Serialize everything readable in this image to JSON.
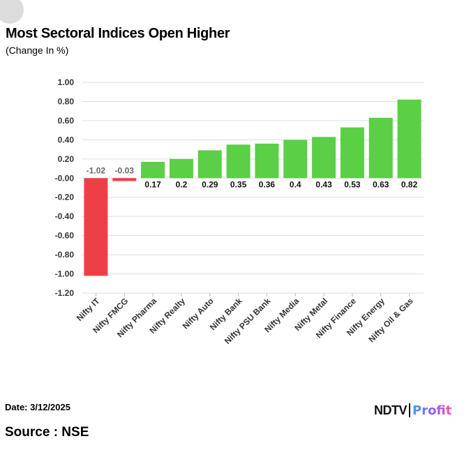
{
  "title": "Most Sectoral Indices Open Higher",
  "subtitle": "(Change In %)",
  "footer": {
    "date": "Date: 3/12/2025",
    "source": "Source : NSE"
  },
  "logo": {
    "brand": "NDTV",
    "product": "Profit"
  },
  "colors": {
    "positive": "#5bcf45",
    "negative": "#ee3f46",
    "grid": "#dddddd",
    "axis_text": "#333333"
  },
  "chart_data": {
    "type": "bar",
    "categories": [
      "Nifty IT",
      "Nifty FMCG",
      "Nifty Pharma",
      "Nifty Realty",
      "Nifty Auto",
      "Nifty Bank",
      "Nifty PSU Bank",
      "Nifty Media",
      "Nifty Metal",
      "Nifty Finance",
      "Nifty Energy",
      "Nifty Oil & Gas"
    ],
    "values": [
      -1.02,
      -0.03,
      0.17,
      0.2,
      0.29,
      0.35,
      0.36,
      0.4,
      0.43,
      0.53,
      0.63,
      0.82
    ],
    "value_labels": [
      "-1.02",
      "-0.03",
      "0.17",
      "0.2",
      "0.29",
      "0.35",
      "0.36",
      "0.4",
      "0.43",
      "0.53",
      "0.63",
      "0.82"
    ],
    "ylim": [
      -1.2,
      1.0
    ],
    "yticks": [
      "1.00",
      "0.80",
      "0.60",
      "0.40",
      "0.20",
      "-0.00",
      "-0.20",
      "-0.40",
      "-0.60",
      "-0.80",
      "-1.00",
      "-1.20"
    ],
    "title": "Most Sectoral Indices Open Higher",
    "subtitle": "(Change In %)",
    "xlabel": "",
    "ylabel": "",
    "grid": true,
    "legend": "none"
  }
}
